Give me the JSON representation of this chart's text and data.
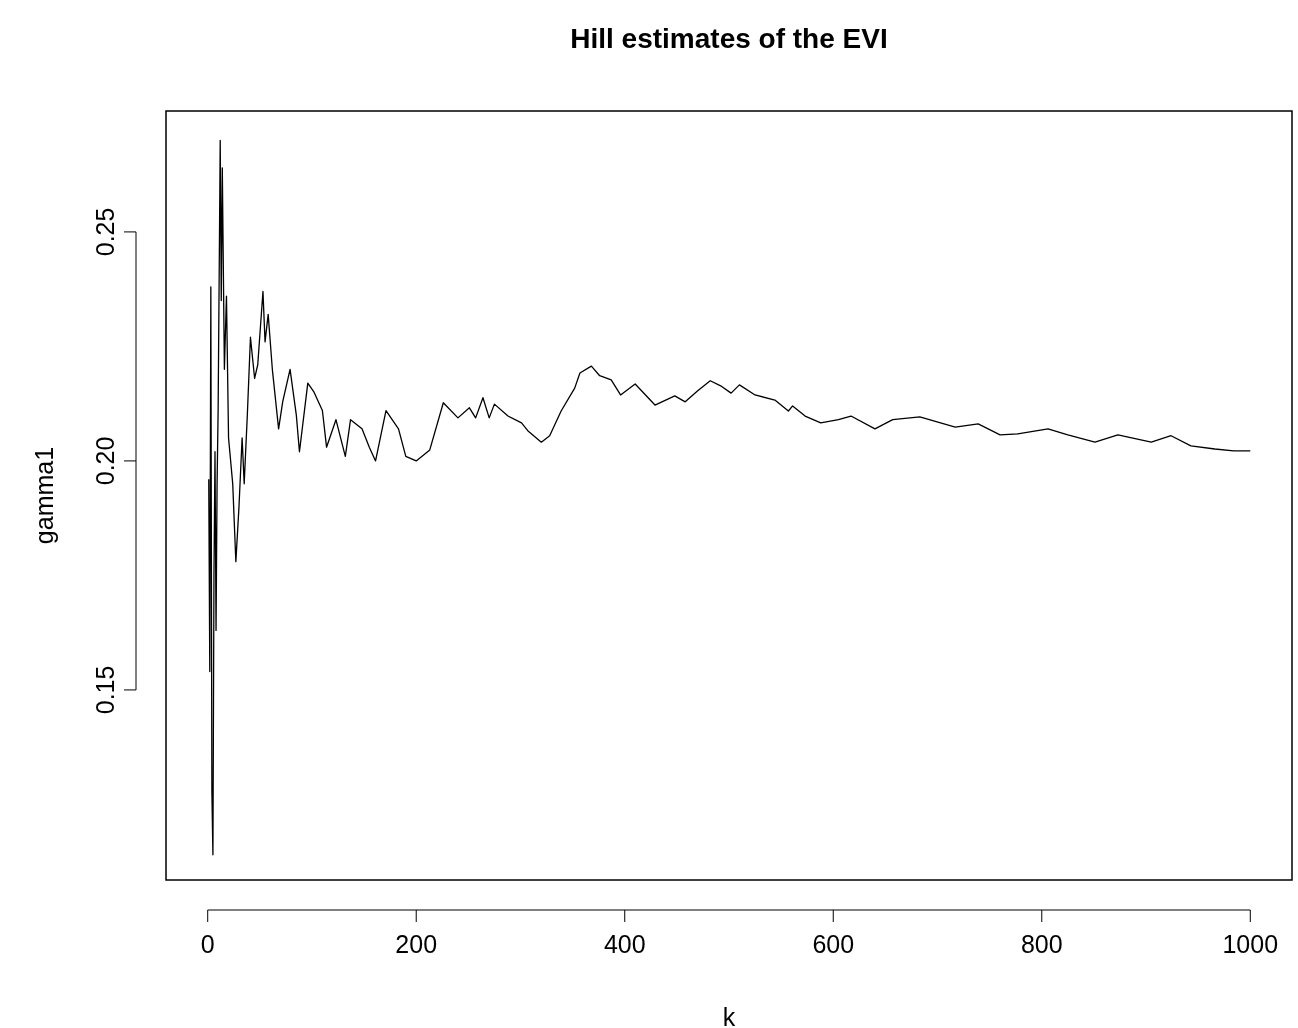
{
  "chart_data": {
    "type": "line",
    "title": "Hill estimates of the EVI",
    "xlabel": "k",
    "ylabel": "gamma1",
    "xlim": [
      -40,
      1040
    ],
    "ylim": [
      0.1085,
      0.2764
    ],
    "xticks": [
      0,
      200,
      400,
      600,
      800,
      1000
    ],
    "yticks": [
      0.15,
      {
        "value": 0.2,
        "label": "0.20"
      },
      0.25
    ],
    "grid": false,
    "marker": "none",
    "line_style": "solid",
    "series": [
      {
        "color": "#000000",
        "x": [
          1,
          2,
          3,
          4,
          5,
          6,
          7,
          8,
          9,
          10,
          12,
          13,
          14,
          16,
          18,
          20,
          24,
          27,
          30,
          33,
          35,
          38,
          41,
          45,
          48,
          53,
          55,
          58,
          62,
          68,
          72,
          79,
          85,
          88,
          96,
          102,
          110,
          114,
          123,
          132,
          137,
          148,
          155,
          161,
          171,
          183,
          190,
          200,
          213,
          226,
          240,
          251,
          257,
          264,
          270,
          275,
          288,
          301,
          307,
          320,
          328,
          339,
          352,
          357,
          368,
          376,
          387,
          396,
          410,
          429,
          448,
          458,
          470,
          482,
          492,
          502,
          510,
          525,
          544,
          557,
          561,
          573,
          588,
          605,
          617,
          640,
          657,
          683,
          717,
          739,
          760,
          777,
          806,
          825,
          851,
          873,
          905,
          924,
          943,
          966,
          984,
          1000
        ],
        "values": [
          0.196,
          0.154,
          0.238,
          0.128,
          0.114,
          0.175,
          0.202,
          0.163,
          0.195,
          0.211,
          0.27,
          0.235,
          0.264,
          0.22,
          0.236,
          0.205,
          0.195,
          0.178,
          0.19,
          0.205,
          0.195,
          0.21,
          0.227,
          0.218,
          0.221,
          0.237,
          0.226,
          0.232,
          0.22,
          0.207,
          0.213,
          0.22,
          0.21,
          0.202,
          0.217,
          0.215,
          0.211,
          0.203,
          0.209,
          0.201,
          0.209,
          0.207,
          0.203,
          0.2,
          0.211,
          0.207,
          0.201,
          0.2,
          0.2024,
          0.2127,
          0.2094,
          0.2116,
          0.2094,
          0.2138,
          0.2094,
          0.2124,
          0.2098,
          0.2083,
          0.2066,
          0.2041,
          0.2055,
          0.2109,
          0.2159,
          0.2192,
          0.2207,
          0.2186,
          0.2177,
          0.2144,
          0.2168,
          0.2122,
          0.2142,
          0.2129,
          0.2153,
          0.2175,
          0.2164,
          0.2148,
          0.2166,
          0.2144,
          0.2133,
          0.2109,
          0.212,
          0.2098,
          0.2083,
          0.209,
          0.2098,
          0.207,
          0.209,
          0.2096,
          0.2074,
          0.2081,
          0.2057,
          0.2059,
          0.207,
          0.2057,
          0.2041,
          0.2057,
          0.2041,
          0.2055,
          0.2033,
          0.2026,
          0.2022,
          0.2022
        ]
      }
    ]
  }
}
